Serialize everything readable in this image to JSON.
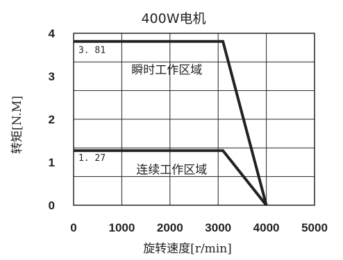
{
  "chart_data": {
    "type": "line",
    "title": "400W电机",
    "xlabel": "旋转速度[r/min]",
    "ylabel": "转矩[N.M]",
    "xlim": [
      0,
      5000
    ],
    "ylim": [
      0,
      4
    ],
    "x_ticks": [
      "0",
      "1000",
      "2000",
      "3000",
      "4000",
      "5000"
    ],
    "y_ticks": [
      "0",
      "1",
      "2",
      "3",
      "4"
    ],
    "grid": true,
    "series": [
      {
        "points": [
          [
            0,
            3.81
          ],
          [
            3100,
            3.81
          ],
          [
            4000,
            0
          ]
        ]
      },
      {
        "points": [
          [
            0,
            1.27
          ],
          [
            3100,
            1.27
          ],
          [
            4000,
            0
          ]
        ]
      }
    ],
    "data_labels": [
      {
        "text": "3. 81",
        "x": 100,
        "y": 3.54
      },
      {
        "text": "1. 27",
        "x": 100,
        "y": 1.03
      }
    ],
    "annotations": [
      {
        "text": "瞬时工作区域",
        "x": 1200,
        "y": 3.06
      },
      {
        "text": "连续工作区域",
        "x": 1300,
        "y": 0.73
      }
    ]
  }
}
